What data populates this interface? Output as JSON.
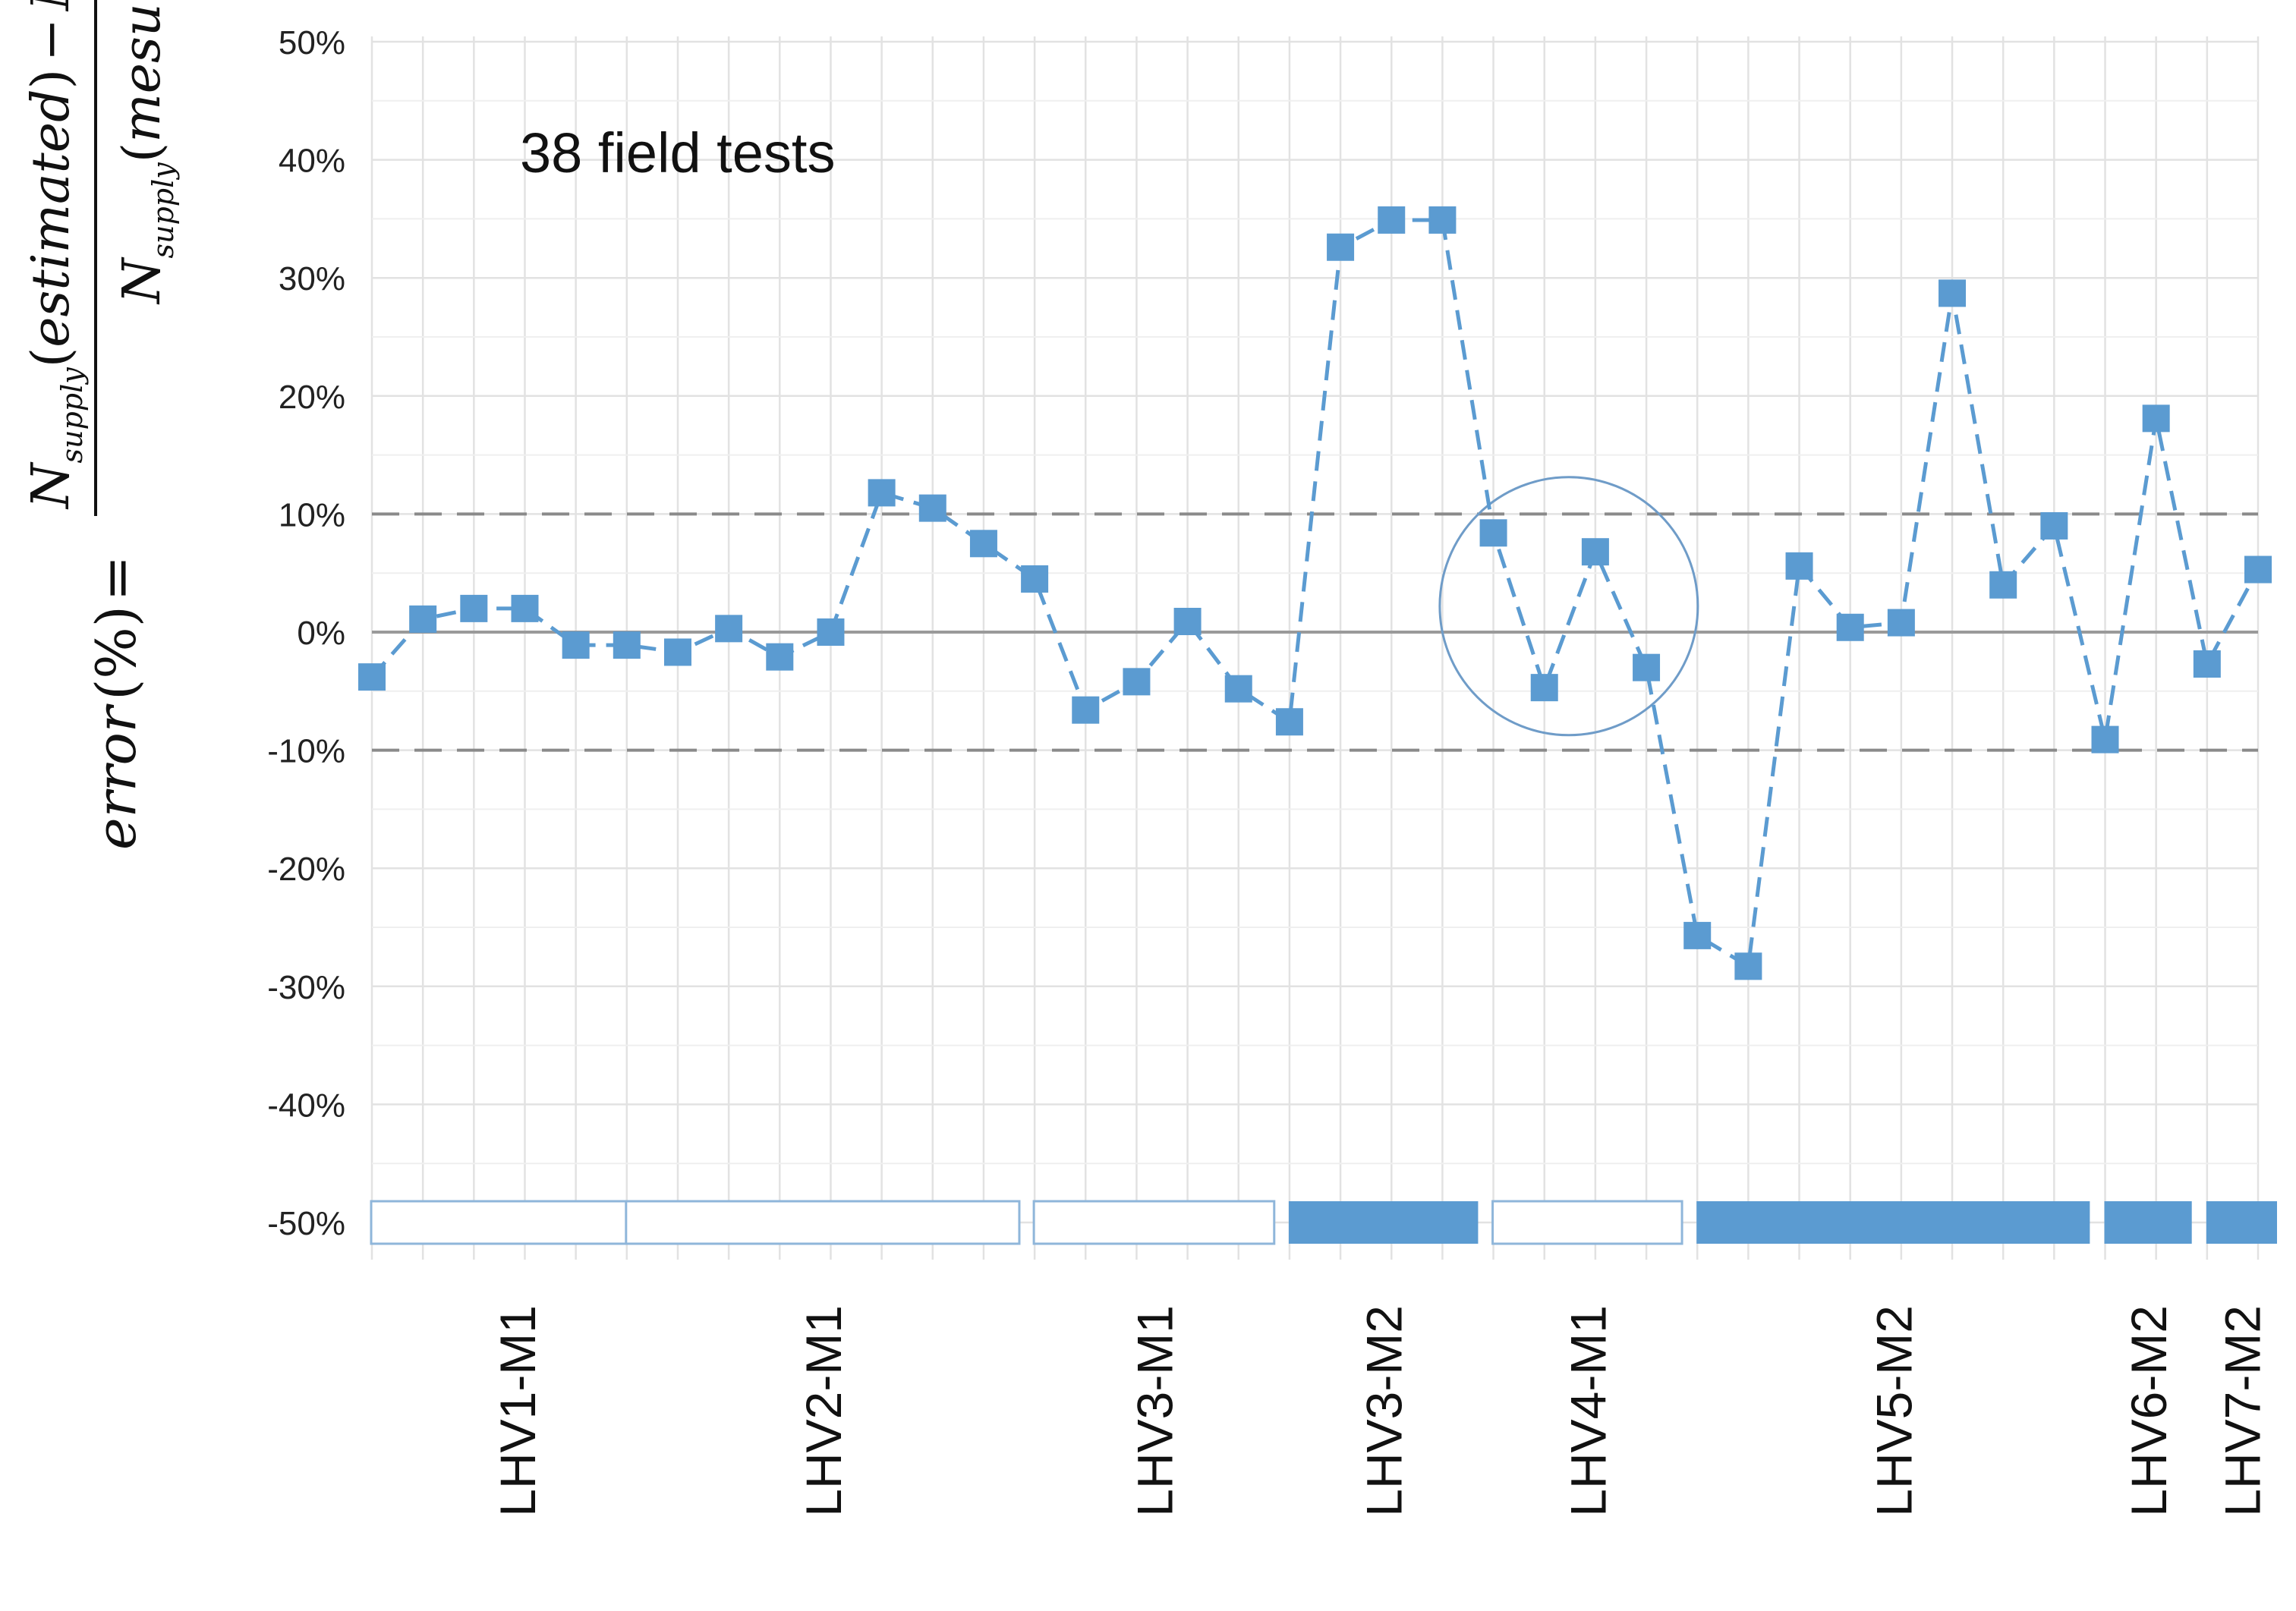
{
  "chart_data": {
    "type": "line",
    "title": "",
    "annotation": "38 field tests",
    "ylabel": {
      "lhs": "error",
      "lhs_unit": "(%)",
      "eq": "=",
      "numerator": "N_supply(estimated) − N_supply(mesured)",
      "denominator": "N_supply(mesured)",
      "N": "N",
      "sub": "supply",
      "estimated": "estimated",
      "mesured": "mesured",
      "minus": "−"
    },
    "ylim": [
      -50,
      50
    ],
    "yticks": [
      50,
      40,
      30,
      20,
      10,
      0,
      -10,
      -20,
      -30,
      -40,
      -50
    ],
    "ytick_labels": [
      "50%",
      "40%",
      "30%",
      "20%",
      "10%",
      "0%",
      "-10%",
      "-20%",
      "-30%",
      "-40%",
      "-50%"
    ],
    "threshold_lines": [
      10,
      -10
    ],
    "series": [
      {
        "color": "#5B9BD1",
        "marker": "square",
        "values": [
          -3.8,
          1.1,
          2.0,
          2.0,
          -1.1,
          -1.1,
          -1.7,
          0.3,
          -2.1,
          0.0,
          11.8,
          10.5,
          7.5,
          4.5,
          -6.6,
          -4.2,
          0.9,
          -4.8,
          -7.6,
          32.6,
          34.9,
          34.9,
          8.4,
          -4.7,
          6.8,
          -3.0,
          -25.7,
          -28.3,
          5.6,
          0.4,
          0.8,
          28.7,
          4.0,
          9.0,
          -9.1,
          18.1,
          -2.7,
          5.3
        ]
      }
    ],
    "groups": [
      {
        "label": "LHV1-M1",
        "start": 0,
        "end": 5,
        "filled": false
      },
      {
        "label": "LHV2-M1",
        "start": 5,
        "end": 12,
        "filled": false
      },
      {
        "label": "LHV3-M1",
        "start": 13,
        "end": 17,
        "filled": false
      },
      {
        "label": "LHV3-M2",
        "start": 18,
        "end": 21,
        "filled": true
      },
      {
        "label": "LHV4-M1",
        "start": 22,
        "end": 25,
        "filled": false
      },
      {
        "label": "LHV5-M2",
        "start": 26,
        "end": 33,
        "filled": true
      },
      {
        "label": "LHV6-M2",
        "start": 34,
        "end": 35,
        "filled": true
      },
      {
        "label": "LHV7-M2",
        "start": 36,
        "end": 37,
        "filled": true
      }
    ],
    "highlight_circle": {
      "center_point": 24,
      "center_value": 2.2
    },
    "grid": true,
    "legend": "none"
  },
  "colors": {
    "series": "#5B9BD1",
    "group_fill": "#5B9BD1",
    "group_outline": "#8FB6DA",
    "grid": "#E2E2E2",
    "zero_line": "#9A9A9A",
    "threshold": "#8A8A8A",
    "circle": "#6F9CC8"
  }
}
